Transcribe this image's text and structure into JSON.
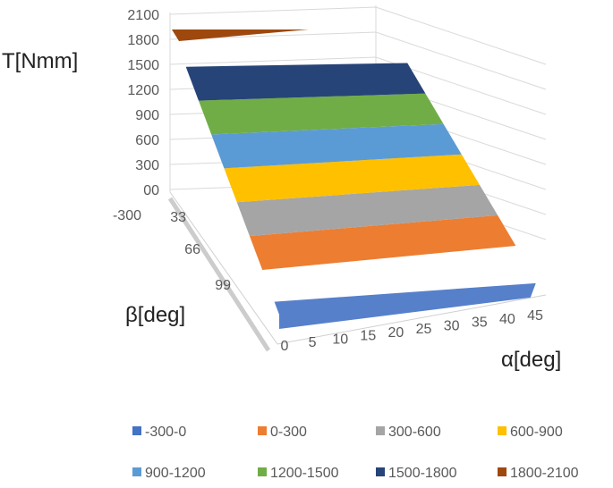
{
  "chart_data": {
    "type": "surface",
    "title": "",
    "zlabel": "T[Nmm]",
    "xlabel": "α[deg]",
    "ylabel": "β[deg]",
    "z_ticks": [
      "2100",
      "1800",
      "1500",
      "1200",
      "900",
      "600",
      "300",
      "00",
      "-300"
    ],
    "alpha_ticks": [
      "0",
      "5",
      "10",
      "15",
      "20",
      "25",
      "30",
      "35",
      "40",
      "45"
    ],
    "beta_ticks": [
      "33",
      "66",
      "99"
    ],
    "zlim": [
      -300,
      2100
    ],
    "bands": [
      {
        "name": "-300-0",
        "range": [
          -300,
          0
        ],
        "color": "#4472c4"
      },
      {
        "name": "0-300",
        "range": [
          0,
          300
        ],
        "color": "#ed7d31"
      },
      {
        "name": "300-600",
        "range": [
          300,
          600
        ],
        "color": "#a5a5a5"
      },
      {
        "name": "600-900",
        "range": [
          600,
          900
        ],
        "color": "#ffc000"
      },
      {
        "name": "900-1200",
        "range": [
          900,
          1200
        ],
        "color": "#5b9bd5"
      },
      {
        "name": "1200-1500",
        "range": [
          1200,
          1500
        ],
        "color": "#70ad47"
      },
      {
        "name": "1500-1800",
        "range": [
          1500,
          1800
        ],
        "color": "#264478"
      },
      {
        "name": "1800-2100",
        "range": [
          1800,
          2100
        ],
        "color": "#9e480e"
      }
    ],
    "grid": true,
    "legend_position": "bottom"
  }
}
